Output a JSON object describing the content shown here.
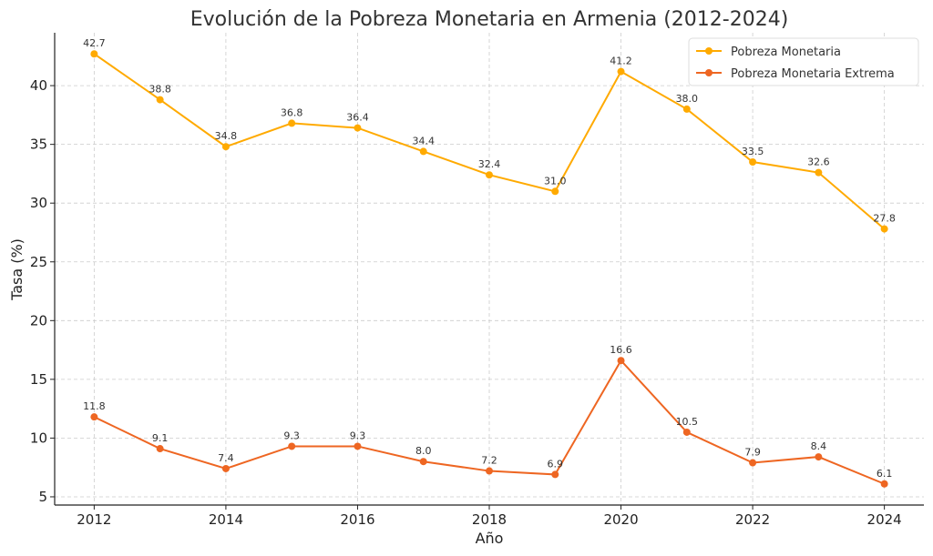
{
  "chart_data": {
    "type": "line",
    "title": "Evolución de la Pobreza Monetaria en Armenia (2012-2024)",
    "xlabel": "Año",
    "ylabel": "Tasa (%)",
    "x": [
      2012,
      2013,
      2014,
      2015,
      2016,
      2017,
      2018,
      2019,
      2020,
      2021,
      2022,
      2023,
      2024
    ],
    "x_ticks": [
      2012,
      2014,
      2016,
      2018,
      2020,
      2022,
      2024
    ],
    "y_ticks": [
      5,
      10,
      15,
      20,
      25,
      30,
      35,
      40
    ],
    "xlim": [
      2011.4,
      2024.6
    ],
    "ylim": [
      4.3,
      44.5
    ],
    "grid": true,
    "legend_position": "top-right",
    "series": [
      {
        "name": "Pobreza Monetaria",
        "color": "#FFAA00",
        "values": [
          42.7,
          38.8,
          34.8,
          36.8,
          36.4,
          34.4,
          32.4,
          31.0,
          41.2,
          38.0,
          33.5,
          32.6,
          27.8
        ],
        "labels": [
          "42.7",
          "38.8",
          "34.8",
          "36.8",
          "36.4",
          "34.4",
          "32.4",
          "31.0",
          "41.2",
          "38.0",
          "33.5",
          "32.6",
          "27.8"
        ]
      },
      {
        "name": "Pobreza Monetaria Extrema",
        "color": "#EE6622",
        "values": [
          11.8,
          9.1,
          7.4,
          9.3,
          9.3,
          8.0,
          7.2,
          6.9,
          16.6,
          10.5,
          7.9,
          8.4,
          6.1
        ],
        "labels": [
          "11.8",
          "9.1",
          "7.4",
          "9.3",
          "9.3",
          "8.0",
          "7.2",
          "6.9",
          "16.6",
          "10.5",
          "7.9",
          "8.4",
          "6.1"
        ]
      }
    ]
  }
}
